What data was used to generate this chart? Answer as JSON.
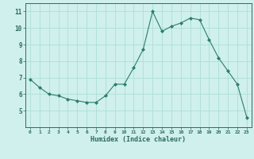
{
  "x": [
    0,
    1,
    2,
    3,
    4,
    5,
    6,
    7,
    8,
    9,
    10,
    11,
    12,
    13,
    14,
    15,
    16,
    17,
    18,
    19,
    20,
    21,
    22,
    23
  ],
  "y": [
    6.9,
    6.4,
    6.0,
    5.9,
    5.7,
    5.6,
    5.5,
    5.5,
    5.9,
    6.6,
    6.6,
    7.6,
    8.7,
    11.0,
    9.8,
    10.1,
    10.3,
    10.6,
    10.5,
    9.3,
    8.2,
    7.4,
    6.6,
    4.6
  ],
  "line_color": "#2d7d6e",
  "marker": "D",
  "marker_size": 2,
  "bg_color": "#cff0ec",
  "grid_color": "#aeddda",
  "xlabel": "Humidex (Indice chaleur)",
  "xlim": [
    -0.5,
    23.5
  ],
  "ylim": [
    4.0,
    11.5
  ],
  "yticks": [
    5,
    6,
    7,
    8,
    9,
    10,
    11
  ],
  "xticks": [
    0,
    1,
    2,
    3,
    4,
    5,
    6,
    7,
    8,
    9,
    10,
    11,
    12,
    13,
    14,
    15,
    16,
    17,
    18,
    19,
    20,
    21,
    22,
    23
  ],
  "tick_color": "#2d6b5e",
  "label_color": "#2d6b5e"
}
